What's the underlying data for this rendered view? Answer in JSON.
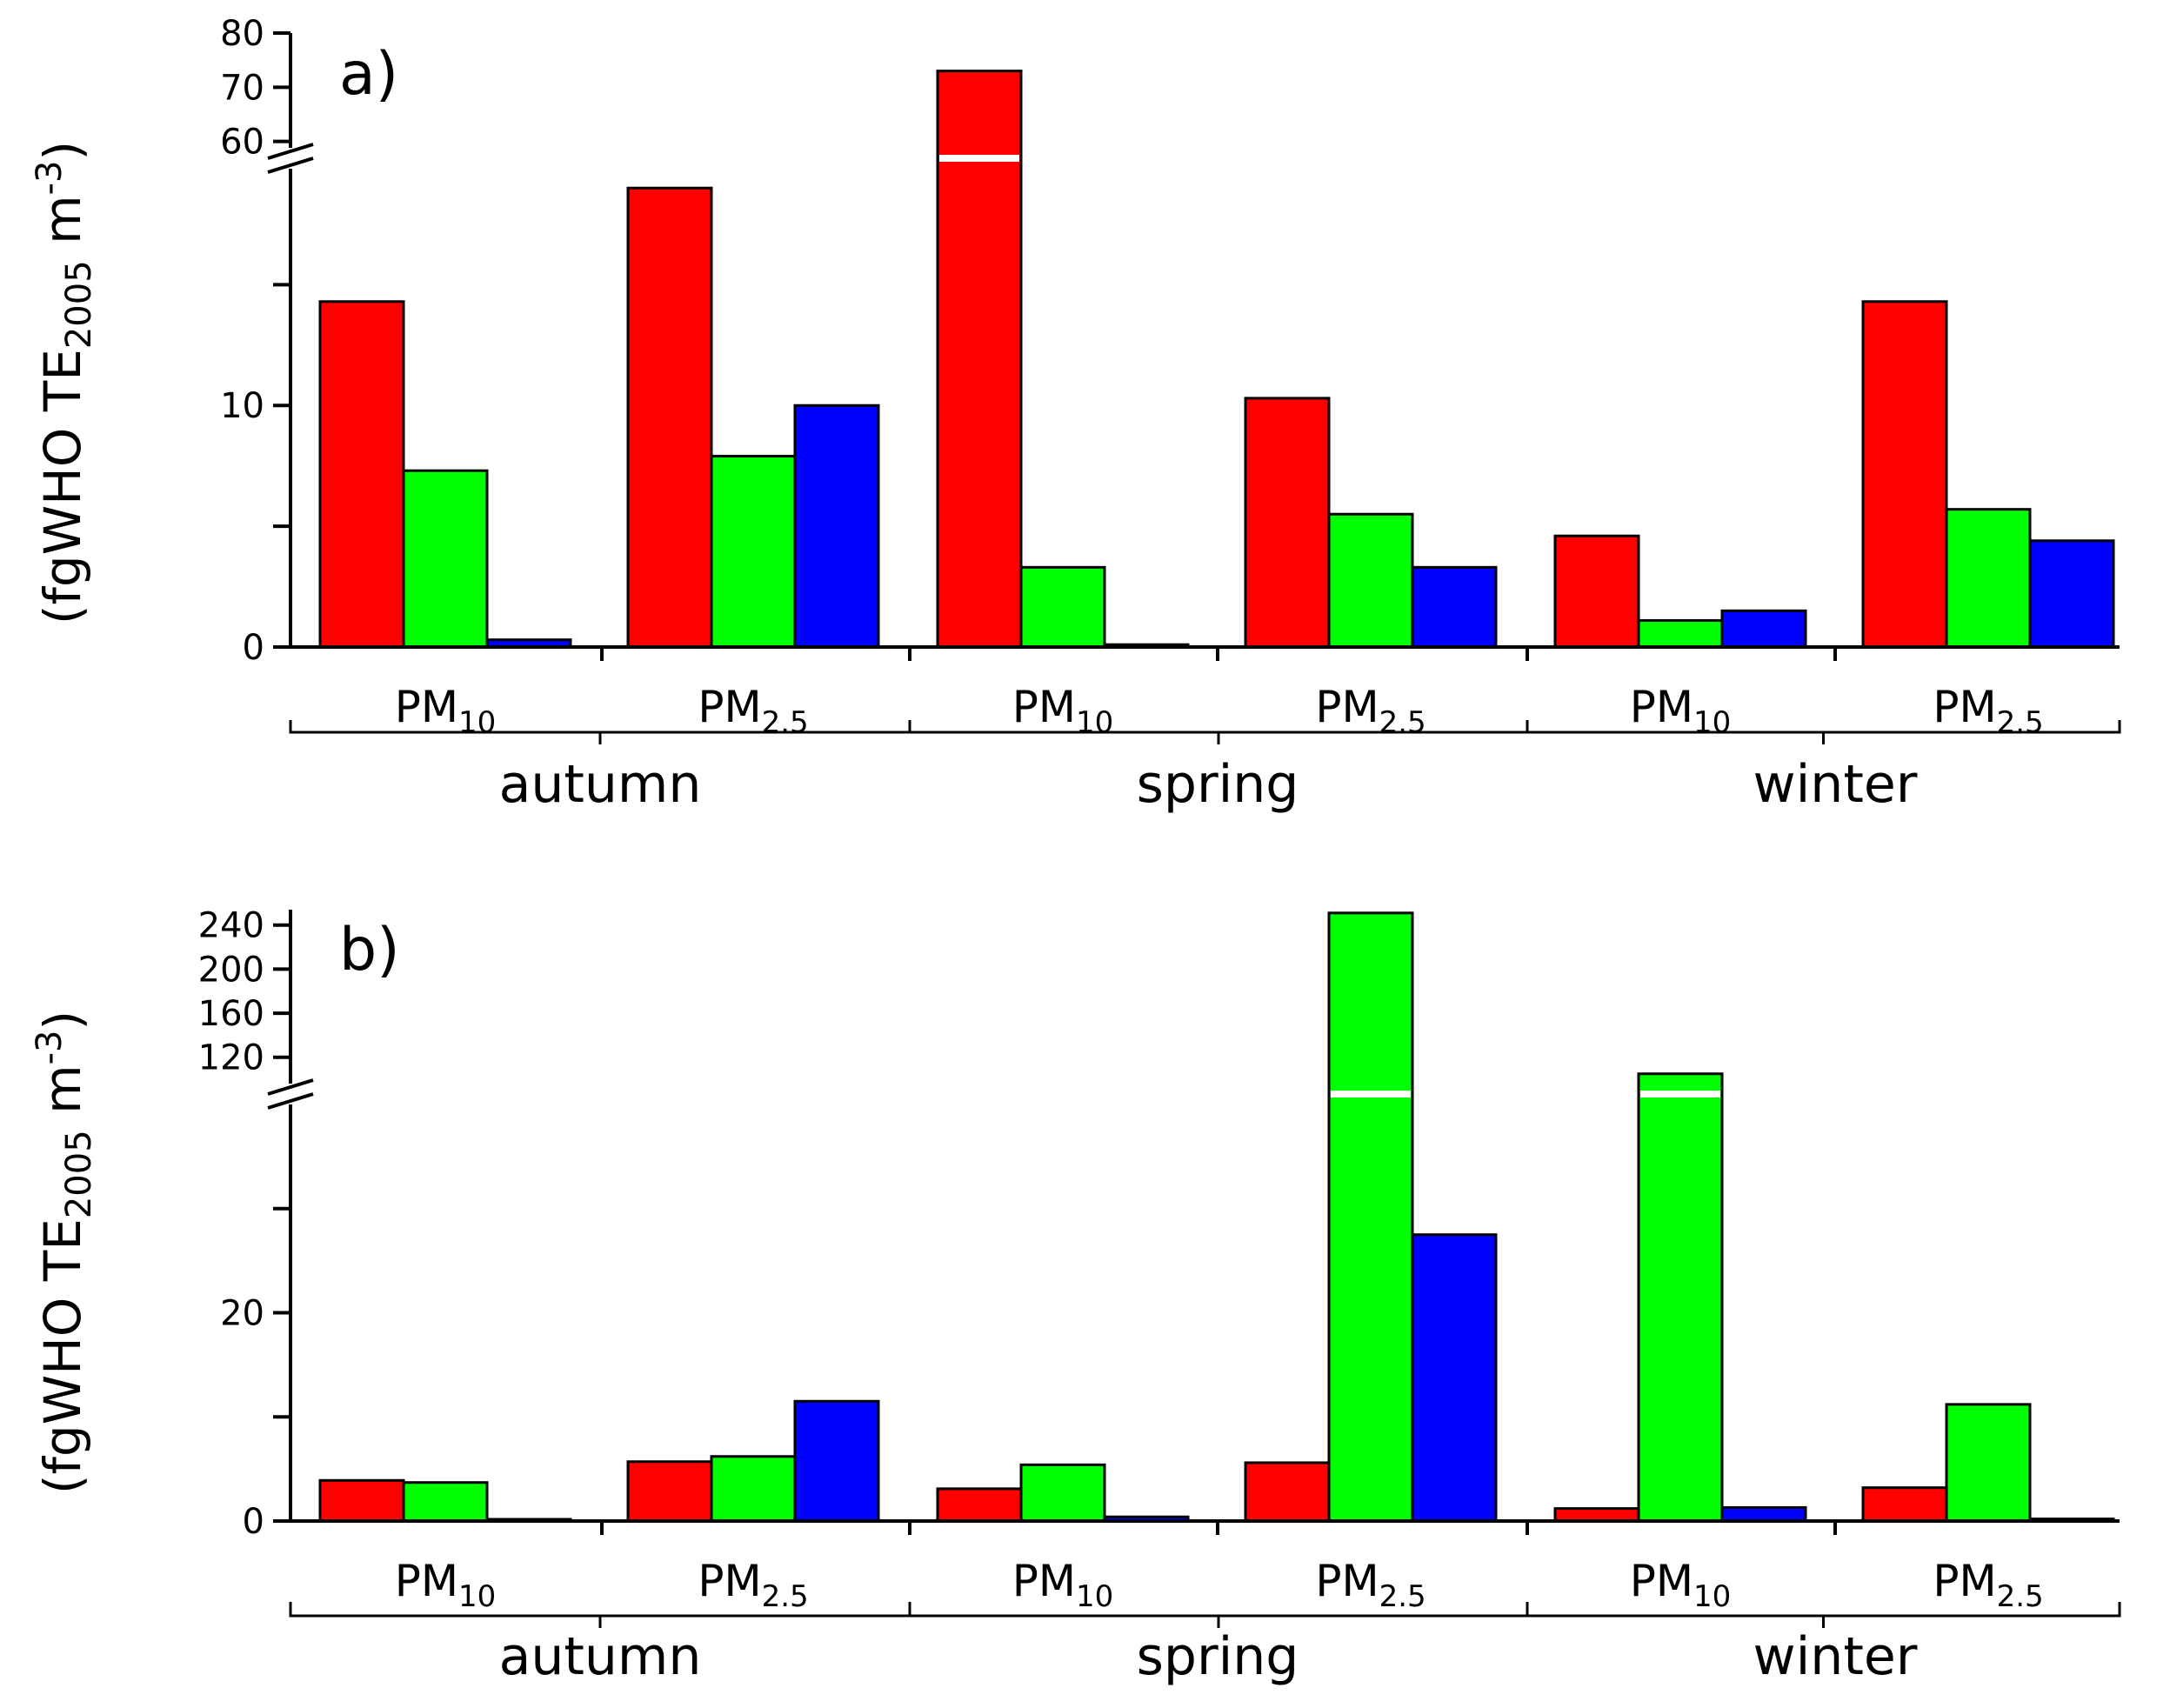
{
  "chart_data": [
    {
      "type": "bar",
      "panel_label": "a)",
      "ylabel": {
        "open": "(fgWHO TE",
        "sub": "2005",
        "unit": " m",
        "sup": "-3",
        "close": ")"
      },
      "groups": [
        {
          "season": "autumn",
          "bars": [
            {
              "fraction": "PM",
              "sub": "10",
              "values": [
                14.3,
                7.3,
                0.3
              ]
            },
            {
              "fraction": "PM",
              "sub": "2.5",
              "values": [
                19.0,
                7.9,
                10.0
              ]
            }
          ]
        },
        {
          "season": "spring",
          "bars": [
            {
              "fraction": "PM",
              "sub": "10",
              "values": [
                73,
                3.3,
                0.1
              ]
            },
            {
              "fraction": "PM",
              "sub": "2.5",
              "values": [
                10.3,
                5.5,
                3.3
              ]
            }
          ]
        },
        {
          "season": "winter",
          "bars": [
            {
              "fraction": "PM",
              "sub": "10",
              "values": [
                4.6,
                1.1,
                1.5
              ]
            },
            {
              "fraction": "PM",
              "sub": "2.5",
              "values": [
                14.3,
                5.7,
                4.4
              ]
            }
          ]
        }
      ],
      "series_colors": [
        "#ff0000",
        "#00ff00",
        "#0000ff"
      ],
      "y_lower": {
        "range": [
          0,
          19.8
        ],
        "ticks": [
          0,
          5,
          10,
          15
        ],
        "labels": [
          "0",
          "",
          "10",
          ""
        ]
      },
      "y_upper": {
        "range": [
          58.5,
          80
        ],
        "ticks": [
          60,
          70,
          80
        ],
        "labels": [
          "60",
          "70",
          "80"
        ]
      },
      "axis_break": true
    },
    {
      "type": "bar",
      "panel_label": "b)",
      "ylabel": {
        "open": "(fgWHO TE",
        "sub": "2005",
        "unit": " m",
        "sup": "-3",
        "close": ")"
      },
      "groups": [
        {
          "season": "autumn",
          "bars": [
            {
              "fraction": "PM",
              "sub": "10",
              "values": [
                3.9,
                3.7,
                0.05
              ]
            },
            {
              "fraction": "PM",
              "sub": "2.5",
              "values": [
                5.7,
                6.2,
                11.5
              ]
            }
          ]
        },
        {
          "season": "spring",
          "bars": [
            {
              "fraction": "PM",
              "sub": "10",
              "values": [
                3.1,
                5.4,
                0.4
              ]
            },
            {
              "fraction": "PM",
              "sub": "2.5",
              "values": [
                5.6,
                251,
                27.5
              ]
            }
          ]
        },
        {
          "season": "winter",
          "bars": [
            {
              "fraction": "PM",
              "sub": "10",
              "values": [
                1.2,
                105,
                1.3
              ]
            },
            {
              "fraction": "PM",
              "sub": "2.5",
              "values": [
                3.2,
                11.2,
                0.2
              ]
            }
          ]
        }
      ],
      "series_colors": [
        "#ff0000",
        "#00ff00",
        "#0000ff"
      ],
      "y_lower": {
        "range": [
          0,
          38.5
        ],
        "ticks": [
          0,
          10,
          20,
          30
        ],
        "labels": [
          "0",
          "",
          "20",
          ""
        ]
      },
      "y_upper": {
        "range": [
          104,
          254
        ],
        "ticks": [
          120,
          160,
          200,
          240
        ],
        "labels": [
          "120",
          "160",
          "200",
          "240"
        ]
      },
      "axis_break": true
    }
  ]
}
